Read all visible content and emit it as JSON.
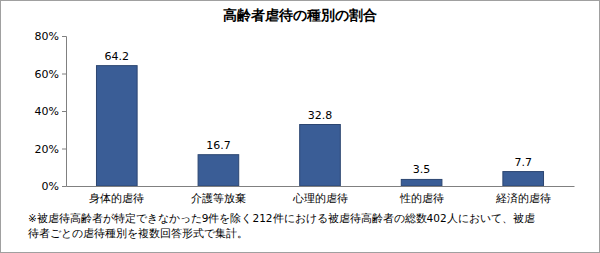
{
  "chart_data": {
    "type": "bar",
    "title": "高齢者虐待の種別の割合",
    "categories": [
      "身体的虐待",
      "介護等放棄",
      "心理的虐待",
      "性的虐待",
      "経済的虐待"
    ],
    "values": [
      64.2,
      16.7,
      32.8,
      3.5,
      7.7
    ],
    "color": "#3a5d96",
    "ylim": [
      0,
      80
    ],
    "yticks": [
      {
        "value": 0,
        "label": "0%"
      },
      {
        "value": 20,
        "label": "20%"
      },
      {
        "value": 40,
        "label": "40%"
      },
      {
        "value": 60,
        "label": "60%"
      },
      {
        "value": 80,
        "label": "80%"
      }
    ],
    "grid": false,
    "data_labels": true,
    "note": [
      "※被虐待高齢者が特定できなかった9件を除く212件における被虐待高齢者の総数402人において、被虐",
      "待者ごとの虐待種別を複数回答形式で集計。"
    ]
  }
}
